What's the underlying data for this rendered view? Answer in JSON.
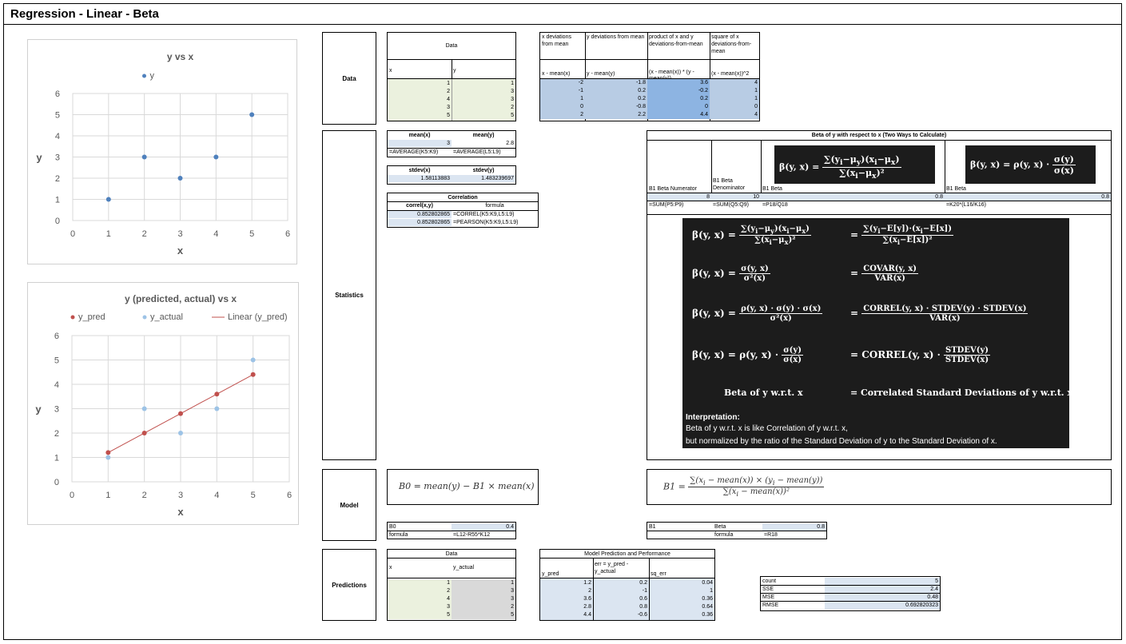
{
  "title": "Regression - Linear - Beta",
  "section_labels": {
    "data": "Data",
    "statistics": "Statistics",
    "model": "Model",
    "predictions": "Predictions"
  },
  "chart1": {
    "chart_data": {
      "type": "scatter",
      "title": "y vs x",
      "xlabel": "x",
      "ylabel": "y",
      "xlim": [
        0,
        6
      ],
      "ylim": [
        0,
        6
      ],
      "x_ticks": [
        "0",
        "1",
        "2",
        "3",
        "4",
        "5",
        "6"
      ],
      "y_ticks": [
        "0",
        "1",
        "2",
        "3",
        "4",
        "5",
        "6"
      ],
      "legend": "top",
      "grid": true,
      "series": [
        {
          "name": "y",
          "x": [
            1,
            2,
            3,
            4,
            5
          ],
          "y": [
            1,
            3,
            2,
            3,
            5
          ],
          "color": "#4f81bd"
        }
      ]
    }
  },
  "chart2": {
    "chart_data": {
      "type": "scatter",
      "title": "y (predicted, actual) vs x",
      "xlabel": "x",
      "ylabel": "y",
      "xlim": [
        0,
        6
      ],
      "ylim": [
        0,
        6
      ],
      "x_ticks": [
        "0",
        "1",
        "2",
        "3",
        "4",
        "5",
        "6"
      ],
      "y_ticks": [
        "0",
        "1",
        "2",
        "3",
        "4",
        "5",
        "6"
      ],
      "legend": "top",
      "grid": true,
      "series": [
        {
          "name": "y_pred",
          "x": [
            1,
            2,
            3,
            4,
            5
          ],
          "y": [
            1.2,
            2,
            2.8,
            3.6,
            4.4
          ],
          "color": "#c0504d"
        },
        {
          "name": "y_actual",
          "x": [
            1,
            2,
            3,
            4,
            5
          ],
          "y": [
            1,
            3,
            2,
            3,
            5
          ],
          "color": "#9dc3e6"
        },
        {
          "name": "Linear (y_pred)",
          "x": [
            1,
            5
          ],
          "y": [
            1.2,
            4.4
          ],
          "color": "#c0504d",
          "line": true
        }
      ]
    }
  },
  "data_table": {
    "header": "Data",
    "col_x": "x",
    "col_y": "y",
    "x": [
      "1",
      "2",
      "4",
      "3",
      "5"
    ],
    "y": [
      "1",
      "3",
      "3",
      "2",
      "5"
    ]
  },
  "dev_table": {
    "headers": [
      "x deviations from mean",
      "y deviations from mean",
      "product of x and y deviations-from-mean",
      "square of x deviations-from-mean"
    ],
    "formulas": [
      "x - mean(x)",
      "y - mean(y)",
      "(x - mean(x)) * (y - mean(y))",
      "(x - mean(x))^2"
    ],
    "rows": [
      [
        "-2",
        "-1.8",
        "3.6",
        "4"
      ],
      [
        "-1",
        "0.2",
        "-0.2",
        "1"
      ],
      [
        "1",
        "0.2",
        "0.2",
        "1"
      ],
      [
        "0",
        "-0.8",
        "0",
        "0"
      ],
      [
        "2",
        "2.2",
        "4.4",
        "4"
      ]
    ]
  },
  "stats": {
    "mean_x_label": "mean(x)",
    "mean_y_label": "mean(y)",
    "mean_x": "3",
    "mean_y": "2.8",
    "mean_x_formula": "=AVERAGE(K5:K9)",
    "mean_y_formula": "=AVERAGE(L5:L9)",
    "stdev_x_label": "stdev(x)",
    "stdev_y_label": "stdev(y)",
    "stdev_x": "1.58113883",
    "stdev_y": "1.483239697",
    "corr_header": "Correlation",
    "corr_label": "correl(x,y)",
    "formula_label": "formula",
    "corr1": "0.852802865",
    "corr1_formula": "=CORREL(K5:K9,L5:L9)",
    "corr2": "0.852802865",
    "corr2_formula": "=PEARSON(K5:K9,L5:L9)"
  },
  "beta_table": {
    "header": "Beta of y with respect to x (Two Ways to Calculate)",
    "num_label": "B1 Beta Numerator",
    "den_label": "B1 Beta Denominator",
    "beta_label": "B1 Beta",
    "beta_label2": "B1 Beta",
    "num_value": "8",
    "den_value": "10",
    "beta_value": "0.8",
    "beta_value2": "0.8",
    "num_formula": "=SUM(P5:P9)",
    "den_formula": "=SUM(Q5:Q9)",
    "beta_formula": "=P18/Q18",
    "beta_formula2": "=K20*(L16/K16)"
  },
  "math": {
    "row5_left": "Beta of y w.r.t. x",
    "row5_right": "= Correlated Standard Deviations of y w.r.t. x",
    "interp_title": "Interpretation:",
    "interp_1": "Beta of y w.r.t. x is like Correlation of y w.r.t. x,",
    "interp_2": "but normalized by the ratio of the Standard Deviation of y to the Standard Deviation of x."
  },
  "model": {
    "b0_label": "B0",
    "b0_value": "0.4",
    "b0_formula_label": "formula",
    "b0_formula": "=L12-R55*K12",
    "b1_label": "B1",
    "b1_beta_label": "Beta",
    "b1_value": "0.8",
    "b1_formula_label": "formula",
    "b1_formula": "=R18"
  },
  "predictions": {
    "header": "Data",
    "col_x": "x",
    "col_y": "y_actual",
    "x": [
      "1",
      "2",
      "4",
      "3",
      "5"
    ],
    "y_actual": [
      "1",
      "3",
      "3",
      "2",
      "5"
    ],
    "perf_header": "Model Prediction and Performance",
    "col_pred": "y_pred",
    "col_err": "err = y_pred - y_actual",
    "col_sq": "sq_err",
    "y_pred": [
      "1.2",
      "2",
      "3.6",
      "2.8",
      "4.4"
    ],
    "err": [
      "0.2",
      "-1",
      "0.6",
      "0.8",
      "-0.6"
    ],
    "sq_err": [
      "0.04",
      "1",
      "0.36",
      "0.64",
      "0.36"
    ]
  },
  "metrics": [
    {
      "label": "count",
      "value": "5"
    },
    {
      "label": "SSE",
      "value": "2.4"
    },
    {
      "label": "MSE",
      "value": "0.48"
    },
    {
      "label": "RMSE",
      "value": "0.692820323"
    }
  ]
}
